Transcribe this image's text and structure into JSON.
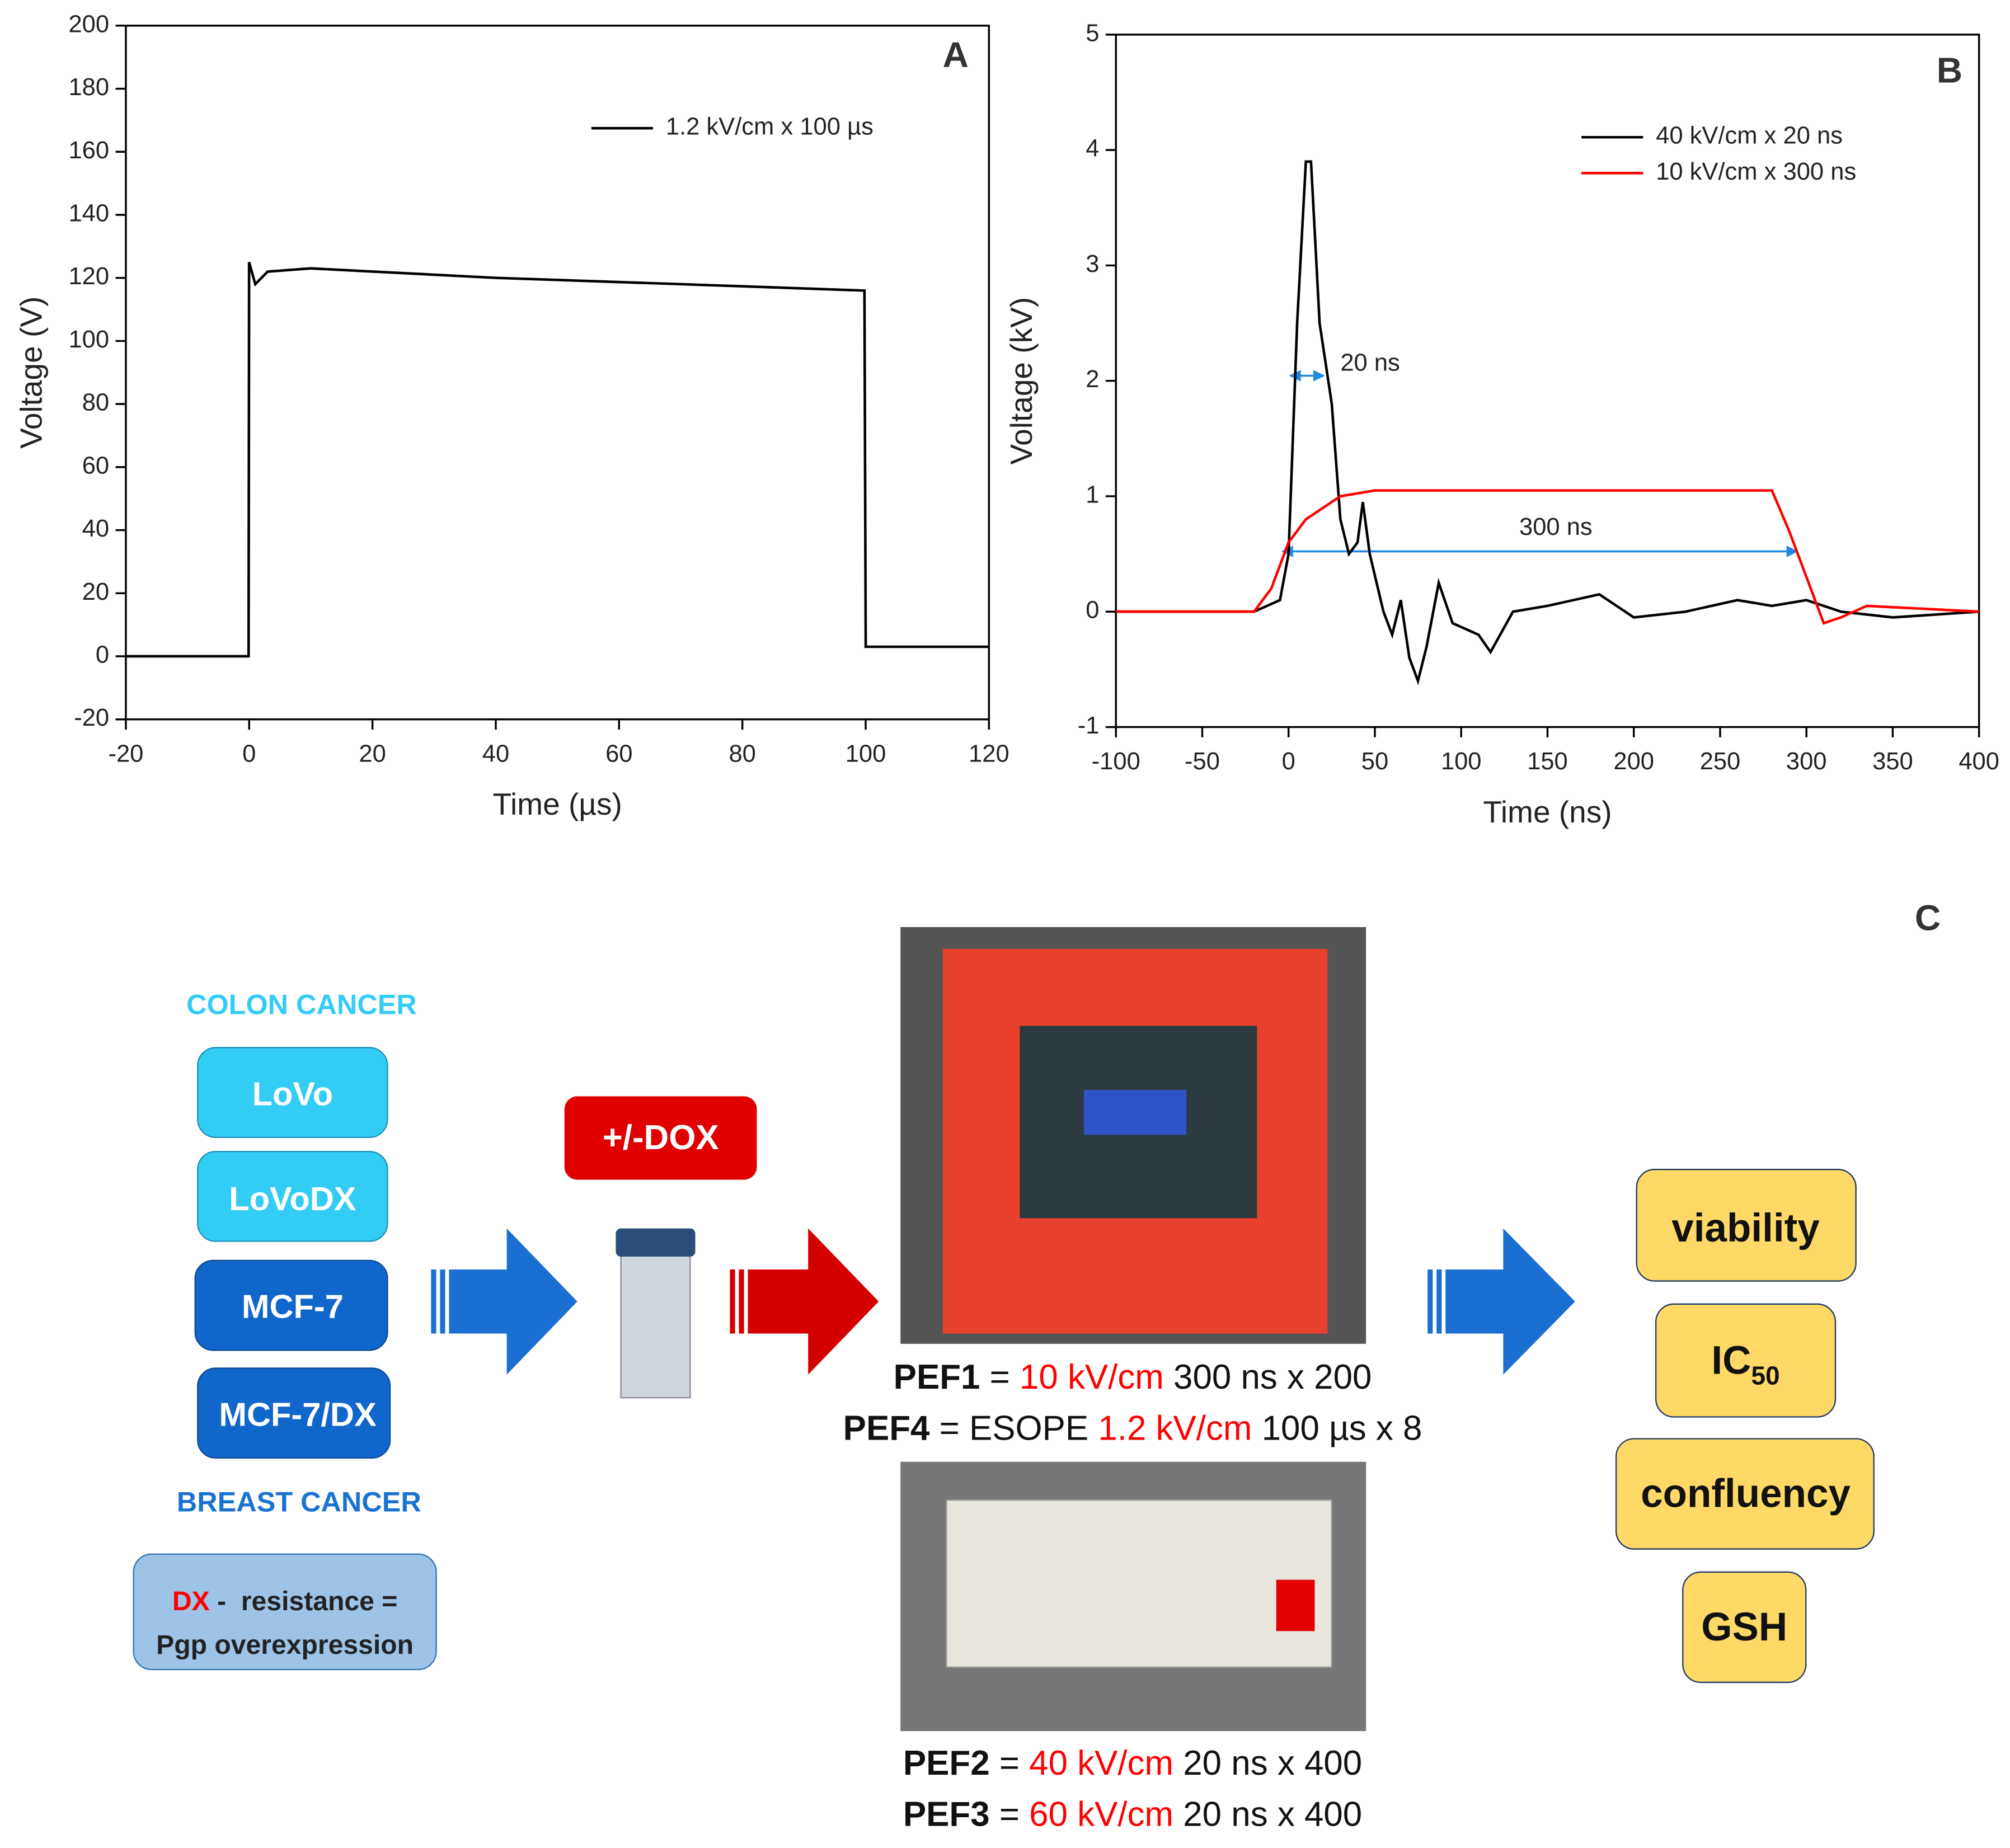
{
  "chart_data": [
    {
      "type": "line",
      "panel_label": "A",
      "xlabel": "Time (µs)",
      "ylabel": "Voltage (V)",
      "xlim": [
        -20,
        120
      ],
      "xticks": [
        -20,
        0,
        20,
        40,
        60,
        80,
        100,
        120
      ],
      "ylim": [
        -20,
        200
      ],
      "yticks": [
        -20,
        0,
        20,
        40,
        60,
        80,
        100,
        120,
        140,
        160,
        180,
        200
      ],
      "legend": "upper right",
      "series": [
        {
          "name": "1.2 kV/cm x 100 µs",
          "color": "#000000",
          "x": [
            -20,
            -10,
            -0.1,
            0,
            1,
            3,
            10,
            40,
            70,
            99.8,
            100,
            110,
            120
          ],
          "values": [
            0,
            0,
            0,
            125,
            118,
            122,
            123,
            120,
            118,
            116,
            3,
            3,
            3
          ]
        }
      ]
    },
    {
      "type": "line",
      "panel_label": "B",
      "xlabel": "Time (ns)",
      "ylabel": "Voltage (kV)",
      "xlim": [
        -100,
        400
      ],
      "xticks": [
        -100,
        -50,
        0,
        50,
        100,
        150,
        200,
        250,
        300,
        350,
        400
      ],
      "ylim": [
        -1,
        5
      ],
      "yticks": [
        -1,
        0,
        1,
        2,
        3,
        4,
        5
      ],
      "legend": "upper right",
      "annotations": [
        "20 ns",
        "300 ns"
      ],
      "series": [
        {
          "name": "40 kV/cm x 20 ns",
          "color": "#000000",
          "x": [
            -100,
            -20,
            -5,
            0,
            5,
            10,
            13,
            18,
            25,
            30,
            35,
            40,
            43,
            47,
            55,
            60,
            65,
            70,
            75,
            80,
            87,
            95,
            110,
            117,
            130,
            150,
            180,
            200,
            230,
            260,
            280,
            300,
            320,
            350,
            400
          ],
          "values": [
            0,
            0,
            0.1,
            0.5,
            2.5,
            3.9,
            3.9,
            2.5,
            1.8,
            0.8,
            0.5,
            0.6,
            0.95,
            0.5,
            0,
            -0.2,
            0.1,
            -0.4,
            -0.6,
            -0.3,
            0.25,
            -0.1,
            -0.2,
            -0.35,
            0,
            0.05,
            0.15,
            -0.05,
            0,
            0.1,
            0.05,
            0.1,
            0,
            -0.05,
            0
          ]
        },
        {
          "name": "10 kV/cm x 300 ns",
          "color": "#ff0000",
          "x": [
            -100,
            -20,
            -10,
            0,
            10,
            30,
            50,
            280,
            290,
            300,
            310,
            320,
            335,
            400
          ],
          "values": [
            0,
            0,
            0.2,
            0.6,
            0.8,
            1.0,
            1.05,
            1.05,
            0.7,
            0.3,
            -0.1,
            -0.05,
            0.05,
            0
          ]
        }
      ]
    }
  ],
  "diagram": {
    "panel_label": "C",
    "colon_label": "COLON CANCER",
    "breast_label": "BREAST CANCER",
    "cell_lines": [
      "LoVo",
      "LoVoDX",
      "MCF-7",
      "MCF-7/DX"
    ],
    "resistance_note": [
      [
        {
          "text": "DX",
          "color": "red"
        },
        {
          "text": " -  resistance ="
        }
      ],
      [
        {
          "text": "Pgp overexpression"
        }
      ]
    ],
    "treatment": "+/-DOX",
    "protocols": [
      [
        {
          "text": "PEF1",
          "bold": true
        },
        {
          "text": " = "
        },
        {
          "text": "10 kV/cm",
          "color": "red"
        },
        {
          "text": " 300 ns x 200"
        }
      ],
      [
        {
          "text": "PEF4",
          "bold": true
        },
        {
          "text": " = ESOPE "
        },
        {
          "text": "1.2 kV/cm",
          "color": "red"
        },
        {
          "text": " 100 µs x 8"
        }
      ],
      [
        {
          "text": "PEF2",
          "bold": true
        },
        {
          "text": " = "
        },
        {
          "text": "40 kV/cm",
          "color": "red"
        },
        {
          "text": " 20 ns x 400"
        }
      ],
      [
        {
          "text": "PEF3",
          "bold": true
        },
        {
          "text": " = "
        },
        {
          "text": "60 kV/cm",
          "color": "red"
        },
        {
          "text": " 20 ns x 400"
        }
      ]
    ],
    "outcomes": [
      [
        {
          "text": "viability"
        }
      ],
      [
        {
          "text": "IC"
        },
        {
          "text": "50",
          "sub": true
        }
      ],
      [
        {
          "text": "confluency"
        }
      ],
      [
        {
          "text": "GSH"
        }
      ]
    ]
  }
}
